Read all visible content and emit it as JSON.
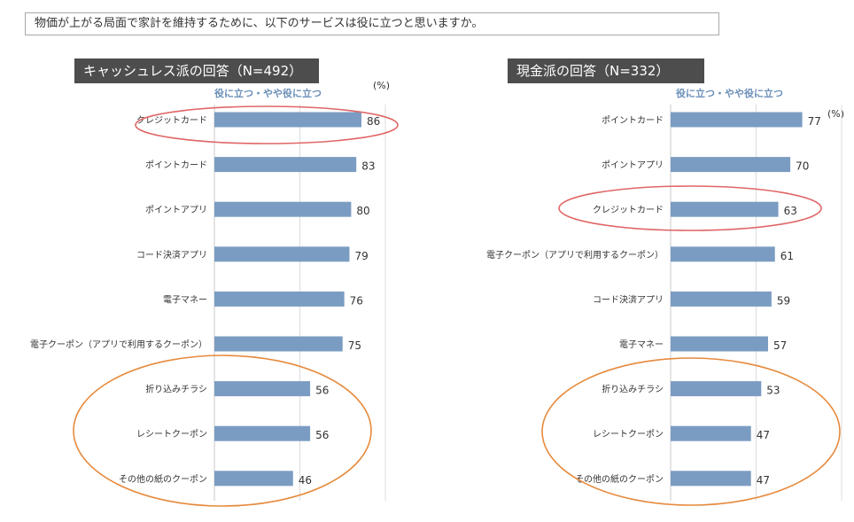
{
  "question": "物価が上がる局面で家計を維持するために、以下のサービスは役に立つと思いますか。",
  "chart_data": [
    {
      "type": "bar",
      "orientation": "horizontal",
      "title": "キャッシュレス派の回答（N=492）",
      "unit": "(%)",
      "series": [
        {
          "name": "役に立つ・やや役に立つ",
          "values": [
            86,
            83,
            80,
            79,
            76,
            75,
            56,
            56,
            46
          ]
        }
      ],
      "categories": [
        "クレジットカード",
        "ポイントカード",
        "ポイントアプリ",
        "コード決済アプリ",
        "電子マネー",
        "電子クーポン（アプリで利用するクーポン）",
        "折り込みチラシ",
        "レシートクーポン",
        "その他の紙のクーポン"
      ],
      "xlim": [
        0,
        100
      ],
      "grid": true,
      "bar_color": "#7b9cc2",
      "highlight_colors": {
        "red": "#e06666",
        "orange": "#e68a3c"
      }
    },
    {
      "type": "bar",
      "orientation": "horizontal",
      "title": "現金派の回答（N=332）",
      "unit": "(%)",
      "series": [
        {
          "name": "役に立つ・やや役に立つ",
          "values": [
            77,
            70,
            63,
            61,
            59,
            57,
            53,
            47,
            47
          ]
        }
      ],
      "categories": [
        "ポイントカード",
        "ポイントアプリ",
        "クレジットカード",
        "電子クーポン（アプリで利用するクーポン）",
        "コード決済アプリ",
        "電子マネー",
        "折り込みチラシ",
        "レシートクーポン",
        "その他の紙のクーポン"
      ],
      "xlim": [
        0,
        100
      ],
      "grid": true,
      "bar_color": "#7b9cc2",
      "highlight_colors": {
        "red": "#e06666",
        "orange": "#e68a3c"
      }
    }
  ]
}
